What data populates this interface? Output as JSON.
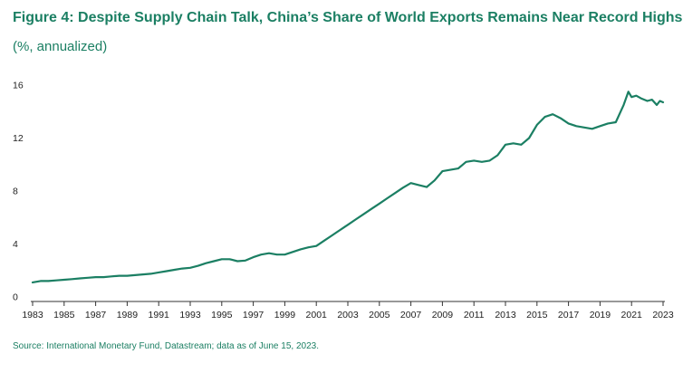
{
  "title": "Figure 4: Despite Supply Chain Talk, China’s Share of World Exports Remains Near Record Highs",
  "subtitle": "(%, annualized)",
  "source": "Source: International Monetary Fund, Datastream; data as of June 15, 2023.",
  "colors": {
    "accent": "#1b7f63",
    "axis": "#333333",
    "text": "#222222"
  },
  "chart_data": {
    "type": "line",
    "title": "Figure 4: Despite Supply Chain Talk, China’s Share of World Exports Remains Near Record Highs",
    "ylabel": "(%, annualized)",
    "xlabel": "",
    "xlim": [
      1983,
      2023
    ],
    "ylim": [
      0,
      16
    ],
    "grid": false,
    "x_ticks": [
      "1983",
      "1985",
      "1987",
      "1989",
      "1991",
      "1993",
      "1995",
      "1997",
      "1999",
      "2001",
      "2003",
      "2005",
      "2007",
      "2009",
      "2011",
      "2013",
      "2015",
      "2017",
      "2019",
      "2021",
      "2023"
    ],
    "y_ticks": [
      "0",
      "4",
      "8",
      "12",
      "16"
    ],
    "series": [
      {
        "color": "#1b7f63",
        "x": [
          1983.0,
          1983.5,
          1984.0,
          1984.5,
          1985.0,
          1985.5,
          1986.0,
          1986.5,
          1987.0,
          1987.5,
          1988.0,
          1988.5,
          1989.0,
          1989.5,
          1990.0,
          1990.5,
          1991.0,
          1991.5,
          1992.0,
          1992.5,
          1993.0,
          1993.5,
          1994.0,
          1994.5,
          1995.0,
          1995.5,
          1996.0,
          1996.5,
          1997.0,
          1997.5,
          1998.0,
          1998.5,
          1999.0,
          1999.5,
          2000.0,
          2000.5,
          2001.0,
          2001.5,
          2002.0,
          2002.5,
          2003.0,
          2003.5,
          2004.0,
          2004.5,
          2005.0,
          2005.5,
          2006.0,
          2006.5,
          2007.0,
          2007.5,
          2008.0,
          2008.5,
          2009.0,
          2009.5,
          2010.0,
          2010.5,
          2011.0,
          2011.5,
          2012.0,
          2012.5,
          2013.0,
          2013.5,
          2014.0,
          2014.5,
          2015.0,
          2015.5,
          2016.0,
          2016.5,
          2017.0,
          2017.5,
          2018.0,
          2018.5,
          2019.0,
          2019.5,
          2020.0,
          2020.5,
          2020.8,
          2021.0,
          2021.3,
          2021.6,
          2022.0,
          2022.3,
          2022.6,
          2022.8,
          2023.0
        ],
        "y": [
          1.1,
          1.2,
          1.2,
          1.25,
          1.3,
          1.35,
          1.4,
          1.45,
          1.5,
          1.5,
          1.55,
          1.6,
          1.6,
          1.65,
          1.7,
          1.75,
          1.85,
          1.95,
          2.05,
          2.15,
          2.2,
          2.35,
          2.55,
          2.7,
          2.85,
          2.85,
          2.7,
          2.75,
          3.0,
          3.2,
          3.3,
          3.2,
          3.2,
          3.4,
          3.6,
          3.75,
          3.85,
          4.25,
          4.65,
          5.05,
          5.45,
          5.85,
          6.25,
          6.65,
          7.05,
          7.45,
          7.85,
          8.25,
          8.6,
          8.45,
          8.3,
          8.8,
          9.5,
          9.6,
          9.7,
          10.2,
          10.3,
          10.2,
          10.3,
          10.7,
          11.5,
          11.6,
          11.5,
          12.0,
          13.0,
          13.6,
          13.8,
          13.5,
          13.1,
          12.9,
          12.8,
          12.7,
          12.9,
          13.1,
          13.2,
          14.5,
          15.5,
          15.1,
          15.2,
          15.0,
          14.8,
          14.9,
          14.5,
          14.8,
          14.7
        ]
      }
    ]
  }
}
